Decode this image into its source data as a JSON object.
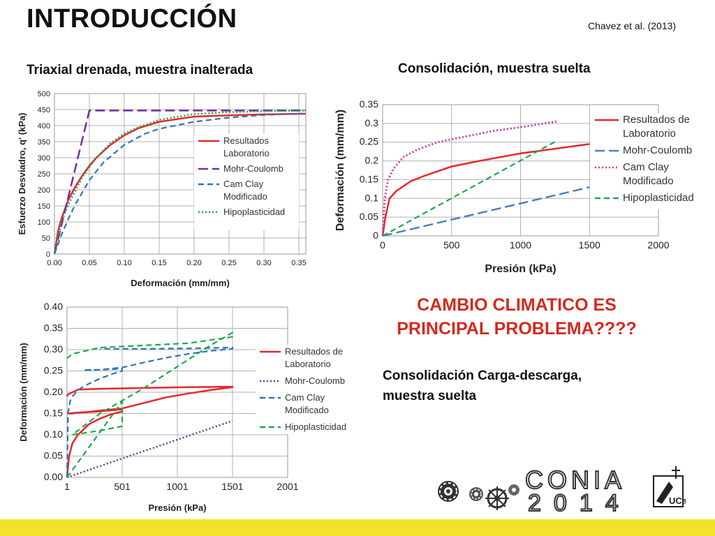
{
  "header": {
    "title": "INTRODUCCIÓN",
    "citation": "Chavez et al. (2013)"
  },
  "subtitles": {
    "triaxial": "Triaxial drenada, muestra inalterada",
    "consolidacion": "Consolidación, muestra suelta",
    "carga_descarga_line1": "Consolidación Carga-descarga,",
    "carga_descarga_line2": "muestra suelta"
  },
  "highlight": {
    "line1": "CAMBIO CLIMATICO ES",
    "line2": "PRINCIPAL PROBLEMA????"
  },
  "logos": {
    "conference_line1": "CONIA",
    "conference_line2": "2014",
    "university_seal": "UCa"
  },
  "colors": {
    "laboratorio": "#e8262b",
    "mohr": "#7030a0",
    "mohr_dash": "#4f81bd",
    "cam": "#2e75b6",
    "cam_pink": "#cc3d9e",
    "hipo": "#1fa84a",
    "footer": "#f2e22b",
    "highlight": "#d32a1e"
  },
  "chart_data": [
    {
      "type": "line",
      "xlabel": "Deformación (mm/mm)",
      "ylabel": "Esfuerzo Desviadro, q' (kPa)",
      "xlim": [
        0,
        0.36
      ],
      "ylim": [
        0,
        500
      ],
      "xticks": [
        "0.00",
        "0.05",
        "0.10",
        "0.15",
        "0.20",
        "0.25",
        "0.30",
        "0.35"
      ],
      "yticks": [
        "0",
        "50",
        "100",
        "150",
        "200",
        "250",
        "300",
        "350",
        "400",
        "450",
        "500"
      ],
      "grid": true,
      "legend_position": "right",
      "legend": [
        {
          "label_lines": [
            "Resultados",
            "Laboratorio"
          ],
          "style": "solid",
          "color": "#e8262b"
        },
        {
          "label_lines": [
            "Mohr-Coulomb"
          ],
          "style": "longdash",
          "color": "#7030a0"
        },
        {
          "label_lines": [
            "Cam Clay",
            "Modificado"
          ],
          "style": "dash",
          "color": "#2e75b6"
        },
        {
          "label_lines": [
            "Hipoplasticidad"
          ],
          "style": "dot",
          "color": "#1fa84a"
        }
      ],
      "series": [
        {
          "style": "solid",
          "color": "#e8262b",
          "width": 2.5,
          "x": [
            0,
            0.005,
            0.01,
            0.02,
            0.03,
            0.04,
            0.05,
            0.06,
            0.08,
            0.1,
            0.12,
            0.15,
            0.2,
            0.25,
            0.3,
            0.36
          ],
          "y": [
            0,
            70,
            110,
            170,
            210,
            245,
            275,
            300,
            340,
            370,
            392,
            412,
            428,
            432,
            435,
            437
          ]
        },
        {
          "style": "longdash",
          "color": "#7030a0",
          "width": 2.5,
          "x": [
            0,
            0.05,
            0.36
          ],
          "y": [
            0,
            447,
            447
          ]
        },
        {
          "style": "dash",
          "color": "#2e75b6",
          "width": 2.2,
          "x": [
            0,
            0.01,
            0.02,
            0.03,
            0.05,
            0.07,
            0.1,
            0.13,
            0.15,
            0.2,
            0.25,
            0.3,
            0.36
          ],
          "y": [
            0,
            60,
            110,
            155,
            230,
            285,
            340,
            375,
            390,
            412,
            425,
            433,
            438
          ]
        },
        {
          "style": "dot",
          "color": "#1fa84a",
          "width": 2.5,
          "x": [
            0,
            0.01,
            0.02,
            0.04,
            0.06,
            0.08,
            0.1,
            0.12,
            0.15,
            0.2,
            0.25,
            0.3,
            0.36
          ],
          "y": [
            0,
            100,
            155,
            240,
            300,
            345,
            375,
            395,
            418,
            436,
            442,
            445,
            447
          ]
        }
      ]
    },
    {
      "type": "line",
      "xlabel": "Presión (kPa)",
      "ylabel": "Deformación (mm/mm)",
      "xlim": [
        0,
        2000
      ],
      "ylim": [
        0,
        0.35
      ],
      "xticks": [
        "0",
        "500",
        "1000",
        "1500",
        "2000"
      ],
      "yticks": [
        "0",
        "0.05",
        "0.1",
        "0.15",
        "0.2",
        "0.25",
        "0.3",
        "0.35"
      ],
      "grid": true,
      "legend_position": "right",
      "legend": [
        {
          "label_lines": [
            "Resultados de",
            "Laboratorio"
          ],
          "style": "solid",
          "color": "#e8262b"
        },
        {
          "label_lines": [
            "Mohr-Coulomb"
          ],
          "style": "longdash",
          "color": "#4f81bd"
        },
        {
          "label_lines": [
            "Cam Clay",
            "Modificado"
          ],
          "style": "dot",
          "color": "#cc3d9e"
        },
        {
          "label_lines": [
            "Hipoplasticidad"
          ],
          "style": "dash",
          "color": "#1fa84a"
        }
      ],
      "series": [
        {
          "style": "solid",
          "color": "#e8262b",
          "width": 2.5,
          "x": [
            0,
            20,
            50,
            100,
            200,
            300,
            500,
            700,
            1000,
            1300,
            1500
          ],
          "y": [
            0,
            0.05,
            0.1,
            0.12,
            0.145,
            0.16,
            0.185,
            0.2,
            0.22,
            0.235,
            0.245
          ]
        },
        {
          "style": "longdash",
          "color": "#4f81bd",
          "width": 2.5,
          "x": [
            0,
            1500
          ],
          "y": [
            0,
            0.13
          ]
        },
        {
          "style": "dot",
          "color": "#cc3d9e",
          "width": 3,
          "x": [
            0,
            15,
            40,
            80,
            150,
            250,
            400,
            600,
            800,
            1000,
            1260
          ],
          "y": [
            0,
            0.1,
            0.15,
            0.18,
            0.21,
            0.23,
            0.25,
            0.265,
            0.28,
            0.29,
            0.305
          ]
        },
        {
          "style": "dash",
          "color": "#1fa84a",
          "width": 2.2,
          "x": [
            0,
            1270
          ],
          "y": [
            0,
            0.255
          ]
        }
      ]
    },
    {
      "type": "line",
      "xlabel": "Presión (kPa)",
      "ylabel": "Deformación (mm/mm)",
      "xlim": [
        1,
        2001
      ],
      "ylim": [
        0,
        0.4
      ],
      "xticks": [
        "1",
        "501",
        "1001",
        "1501",
        "2001"
      ],
      "yticks": [
        "0.00",
        "0.05",
        "0.10",
        "0.15",
        "0.20",
        "0.25",
        "0.30",
        "0.35",
        "0.40"
      ],
      "grid": true,
      "legend_position": "right",
      "legend": [
        {
          "label_lines": [
            "Resultados de",
            "Laboratorio"
          ],
          "style": "solid",
          "color": "#e8262b"
        },
        {
          "label_lines": [
            "Mohr-Coulomb"
          ],
          "style": "dot",
          "color": "#7030a0"
        },
        {
          "label_lines": [
            "Cam Clay",
            "Modificado"
          ],
          "style": "dash",
          "color": "#2e75b6"
        },
        {
          "label_lines": [
            "Hipoplasticidad"
          ],
          "style": "dash",
          "color": "#1fa84a"
        }
      ],
      "series": [
        {
          "style": "solid",
          "color": "#e8262b",
          "width": 2.5,
          "x": [
            1,
            20,
            50,
            100,
            200,
            300,
            400,
            501,
            501,
            300,
            100,
            50,
            10,
            20,
            50,
            100,
            200,
            300,
            501,
            700,
            900,
            1100,
            1300,
            1501,
            1501,
            1100,
            700,
            300,
            100,
            10,
            1
          ],
          "y": [
            0,
            0.05,
            0.08,
            0.1,
            0.125,
            0.138,
            0.148,
            0.155,
            0.16,
            0.155,
            0.152,
            0.15,
            0.15,
            0.15,
            0.151,
            0.152,
            0.154,
            0.157,
            0.162,
            0.175,
            0.188,
            0.197,
            0.205,
            0.212,
            0.213,
            0.212,
            0.21,
            0.208,
            0.206,
            0.195,
            0.19
          ]
        },
        {
          "style": "dot",
          "color": "#7030a0",
          "width": 2.5,
          "x": [
            1,
            1501
          ],
          "y": [
            0,
            0.133
          ]
        },
        {
          "style": "dash",
          "color": "#2e75b6",
          "width": 2.2,
          "x": [
            1,
            10,
            30,
            50,
            100,
            150,
            200,
            300,
            400,
            501,
            501,
            300,
            150,
            150,
            300,
            501,
            700,
            900,
            1100,
            1300,
            1501,
            1501,
            1100,
            700,
            300
          ],
          "y": [
            0,
            0.15,
            0.18,
            0.19,
            0.205,
            0.213,
            0.22,
            0.232,
            0.242,
            0.25,
            0.255,
            0.253,
            0.252,
            0.252,
            0.253,
            0.258,
            0.27,
            0.281,
            0.29,
            0.297,
            0.302,
            0.305,
            0.303,
            0.302,
            0.302
          ]
        },
        {
          "style": "dash",
          "color": "#1fa84a",
          "width": 2.2,
          "x": [
            1,
            501,
            501,
            300,
            50,
            50,
            300,
            700,
            1000,
            1300,
            1501,
            1501,
            1100,
            700,
            300,
            50,
            1
          ],
          "y": [
            0,
            0.178,
            0.12,
            0.11,
            0.1,
            0.1,
            0.15,
            0.21,
            0.26,
            0.31,
            0.34,
            0.33,
            0.315,
            0.31,
            0.305,
            0.29,
            0.28
          ]
        }
      ]
    }
  ]
}
